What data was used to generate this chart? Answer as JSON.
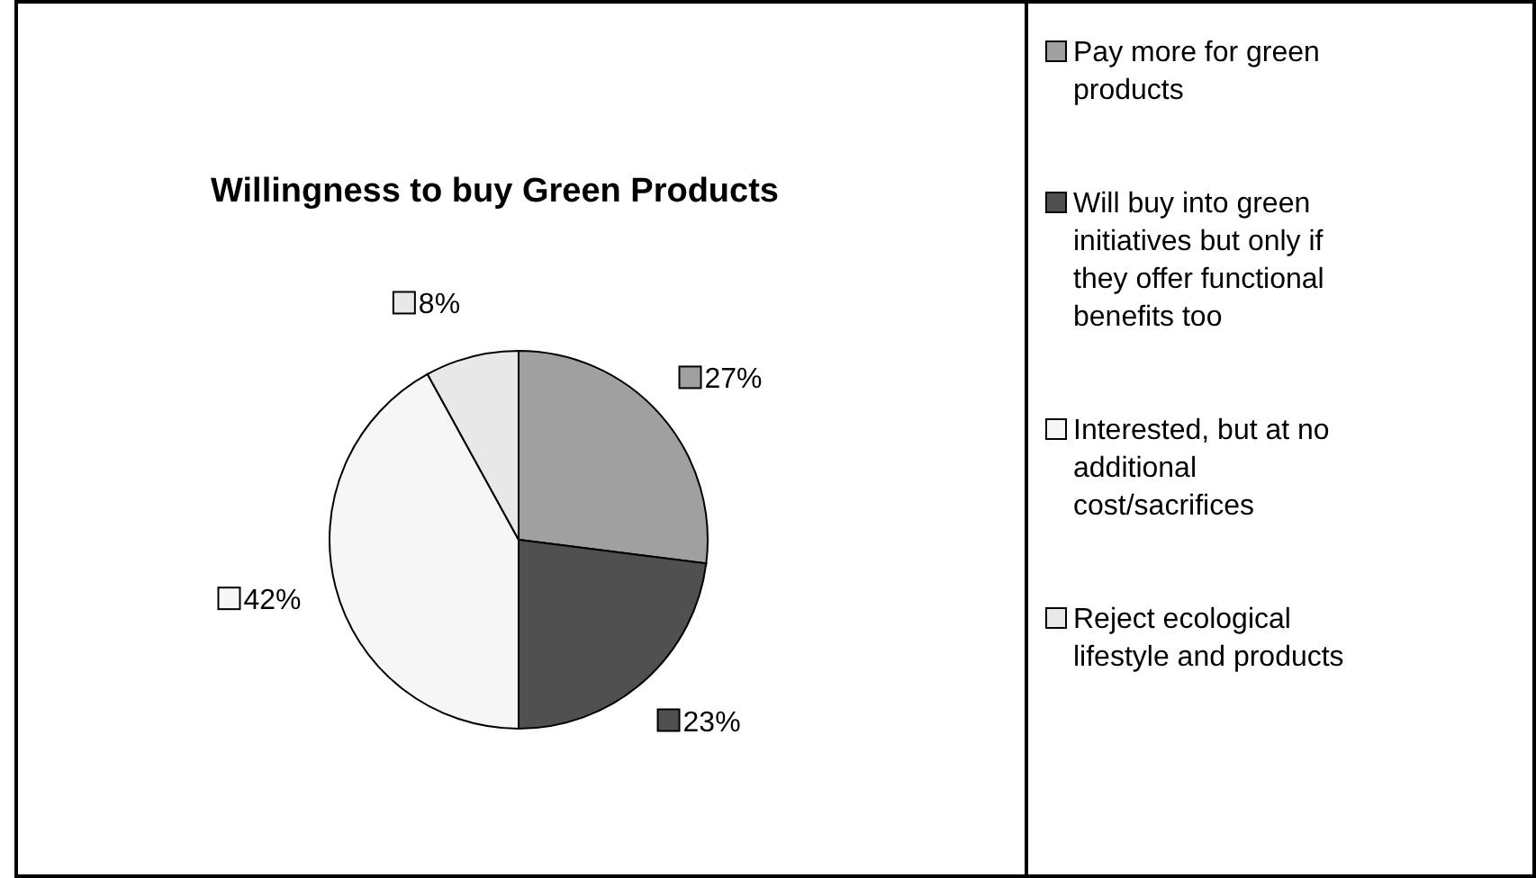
{
  "chart_data": {
    "type": "pie",
    "title": "Willingness to buy Green Products",
    "categories": [
      "Pay more for green products",
      "Will buy into green initiatives but only if they offer functional benefits too",
      "Interested, but at no additional cost/sacrifices",
      "Reject ecological lifestyle and products"
    ],
    "values": [
      27,
      23,
      42,
      8
    ],
    "colors": [
      "#a0a0a0",
      "#505050",
      "#f6f6f6",
      "#e8e8e8"
    ],
    "value_labels": [
      "27%",
      "23%",
      "42%",
      "8%"
    ],
    "legend": "right"
  }
}
